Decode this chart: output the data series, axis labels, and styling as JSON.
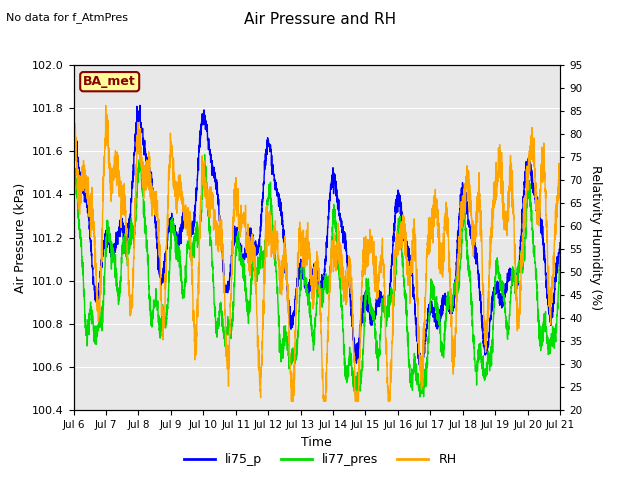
{
  "title": "Air Pressure and RH",
  "subtitle": "No data for f_AtmPres",
  "xlabel": "Time",
  "ylabel_left": "Air Pressure (kPa)",
  "ylabel_right": "Relativity Humidity (%)",
  "xlim_days": [
    6,
    21
  ],
  "ylim_left": [
    100.4,
    102.0
  ],
  "ylim_right": [
    20,
    95
  ],
  "yticks_left": [
    100.4,
    100.6,
    100.8,
    101.0,
    101.2,
    101.4,
    101.6,
    101.8,
    102.0
  ],
  "yticks_right": [
    20,
    25,
    30,
    35,
    40,
    45,
    50,
    55,
    60,
    65,
    70,
    75,
    80,
    85,
    90,
    95
  ],
  "xtick_labels": [
    "Jul 6",
    "Jul 7",
    "Jul 8",
    "Jul 9",
    "Jul 10",
    "Jul 11",
    "Jul 12",
    "Jul 13",
    "Jul 14",
    "Jul 15",
    "Jul 16",
    "Jul 17",
    "Jul 18",
    "Jul 19",
    "Jul 20",
    "Jul 21"
  ],
  "station_label": "BA_met",
  "station_box_facecolor": "#FFFF99",
  "station_box_edgecolor": "#8B0000",
  "line_blue_color": "#0000FF",
  "line_green_color": "#00DD00",
  "line_orange_color": "#FFA500",
  "background_color": "#E8E8E8",
  "grid_color": "#FFFFFF",
  "legend_labels": [
    "li75_p",
    "li77_pres",
    "RH"
  ],
  "fig_background": "#FFFFFF"
}
